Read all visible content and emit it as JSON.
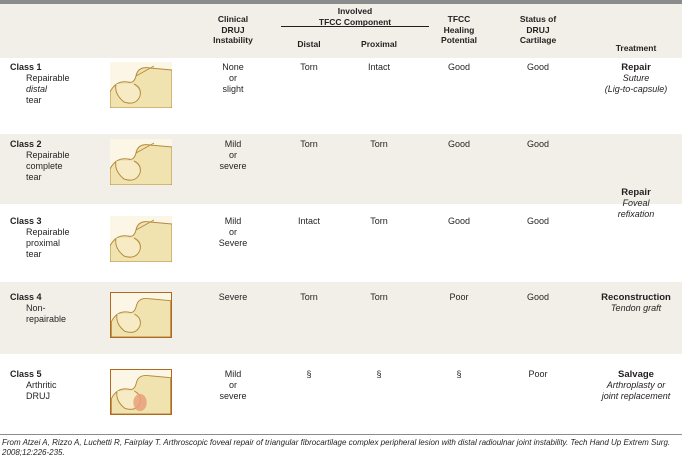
{
  "headers": {
    "instability": [
      "Clinical",
      "DRUJ",
      "Instability"
    ],
    "component_group": [
      "Involved",
      "TFCC Component"
    ],
    "distal": "Distal",
    "proximal": "Proximal",
    "healing": [
      "TFCC",
      "Healing",
      "Potential"
    ],
    "cartilage": [
      "Status of",
      "DRUJ",
      "Cartilage"
    ],
    "treatment": "Treatment"
  },
  "rows": [
    {
      "class_label": "Class 1",
      "desc": [
        "Repairable",
        "distal",
        "tear"
      ],
      "instability": [
        "None",
        "or",
        "slight"
      ],
      "distal": "Torn",
      "proximal": "Intact",
      "healing": "Good",
      "cartilage": "Good",
      "treatment_bold": "Repair",
      "treatment_italic": [
        "Suture",
        "(Lig-to-capsule)"
      ]
    },
    {
      "class_label": "Class 2",
      "desc": [
        "Repairable",
        "complete",
        "tear"
      ],
      "instability": [
        "Mild",
        "or",
        "severe"
      ],
      "distal": "Torn",
      "proximal": "Torn",
      "healing": "Good",
      "cartilage": "Good"
    },
    {
      "class_label": "Class 3",
      "desc": [
        "Repairable",
        "proximal",
        "tear"
      ],
      "instability": [
        "Mild",
        "or",
        "Severe"
      ],
      "distal": "Intact",
      "proximal": "Torn",
      "healing": "Good",
      "cartilage": "Good"
    },
    {
      "class_label": "Class 4",
      "desc": [
        "Non-",
        "repairable"
      ],
      "instability": [
        "Severe"
      ],
      "distal": "Torn",
      "proximal": "Torn",
      "healing": "Poor",
      "cartilage": "Good",
      "treatment_bold": "Reconstruction",
      "treatment_italic": [
        "Tendon graft"
      ]
    },
    {
      "class_label": "Class 5",
      "desc": [
        "Arthritic",
        "DRUJ"
      ],
      "instability": [
        "Mild",
        "or",
        "severe"
      ],
      "distal": "§",
      "proximal": "§",
      "healing": "§",
      "cartilage": "Poor",
      "treatment_bold": "Salvage",
      "treatment_italic": [
        "Arthroplasty or",
        "joint replacement"
      ]
    }
  ],
  "merged_treatment": {
    "bold": "Repair",
    "italic": [
      "Foveal",
      "refixation"
    ]
  },
  "footer": "From Atzei A, Rizzo A, Luchetti R, Fairplay T. Arthroscopic foveal repair of triangular fibrocartilage complex peripheral lesion with distal radioulnar joint instability. Tech Hand Up Extrem Surg. 2008;12:226-235.",
  "colors": {
    "band": "#f1efe8",
    "rule": "#8a8c8e",
    "bone": "#f1e3b0",
    "bone_outline": "#b58a3c",
    "frame": "#b0691f",
    "arthritis": "#e8a07a"
  }
}
